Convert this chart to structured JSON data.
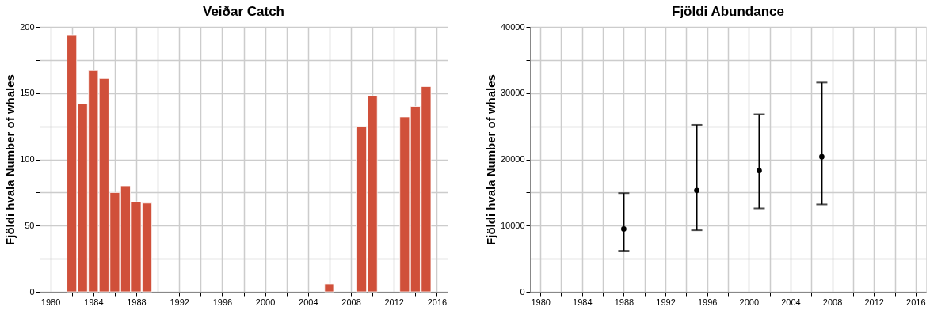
{
  "chart_data": [
    {
      "type": "bar",
      "title": "Veiðar Catch",
      "ylabel": "Fjöldi hvala Number of whales",
      "x": [
        1982,
        1983,
        1984,
        1985,
        1986,
        1987,
        1988,
        1989,
        2006,
        2009,
        2010,
        2013,
        2014,
        2015
      ],
      "values": [
        194,
        142,
        167,
        161,
        75,
        80,
        68,
        67,
        6,
        125,
        148,
        132,
        140,
        155
      ],
      "color": "#d0503a",
      "xlim": [
        1979,
        2017
      ],
      "xticks": [
        1980,
        {
          "value": 1982,
          "label": null
        },
        1984,
        {
          "value": 1986,
          "label": null
        },
        1988,
        {
          "value": 1990,
          "label": null
        },
        1992,
        {
          "value": 1994,
          "label": null
        },
        1996,
        {
          "value": 1998,
          "label": null
        },
        2000,
        {
          "value": 2002,
          "label": null
        },
        2004,
        {
          "value": 2006,
          "label": null
        },
        2008,
        {
          "value": 2010,
          "label": null
        },
        2012,
        {
          "value": 2014,
          "label": null
        },
        2016
      ],
      "ylim": [
        0,
        200
      ],
      "yticks": [
        0,
        {
          "value": 25,
          "label": null
        },
        50,
        {
          "value": 75,
          "label": null
        },
        100,
        {
          "value": 125,
          "label": null
        },
        150,
        {
          "value": 175,
          "label": null
        },
        200
      ],
      "grid": true
    },
    {
      "type": "scatter",
      "title": "Fjöldi Abundance",
      "ylabel": "Fjöldi hvala Number of whales",
      "x": [
        1988,
        1995,
        2001,
        2007
      ],
      "values": [
        9500,
        15300,
        18300,
        20400
      ],
      "errors": [
        [
          6200,
          14900
        ],
        [
          9300,
          25200
        ],
        [
          12600,
          26800
        ],
        [
          13200,
          31600
        ]
      ],
      "color": "#000000",
      "marker": "circle",
      "xlim": [
        1979,
        2017
      ],
      "xticks": [
        1980,
        {
          "value": 1982,
          "label": null
        },
        1984,
        {
          "value": 1986,
          "label": null
        },
        1988,
        {
          "value": 1990,
          "label": null
        },
        1992,
        {
          "value": 1994,
          "label": null
        },
        1996,
        {
          "value": 1998,
          "label": null
        },
        2000,
        {
          "value": 2002,
          "label": null
        },
        2004,
        {
          "value": 2006,
          "label": null
        },
        2008,
        {
          "value": 2010,
          "label": null
        },
        2012,
        {
          "value": 2014,
          "label": null
        },
        2016
      ],
      "ylim": [
        0,
        40000
      ],
      "yticks": [
        0,
        {
          "value": 5000,
          "label": null
        },
        10000,
        {
          "value": 15000,
          "label": null
        },
        20000,
        {
          "value": 25000,
          "label": null
        },
        30000,
        {
          "value": 35000,
          "label": null
        },
        40000
      ],
      "grid": true
    }
  ]
}
